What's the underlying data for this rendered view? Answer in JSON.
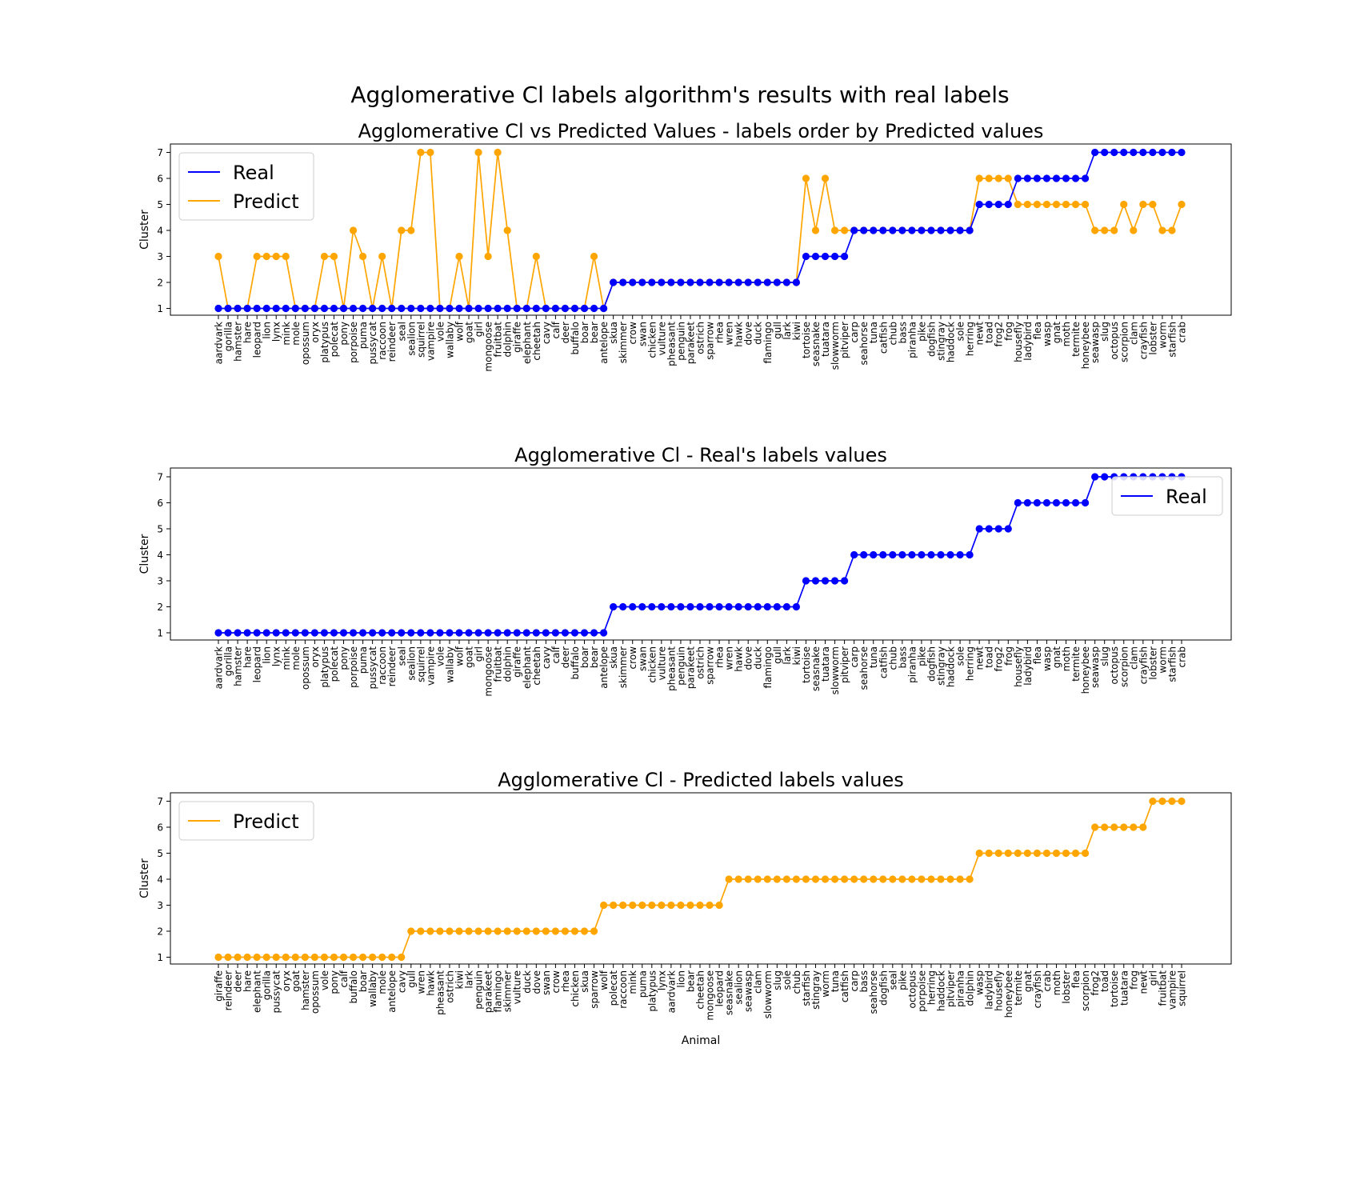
{
  "suptitle": "Agglomerative Cl labels algorithm's results with real labels",
  "colors": {
    "real": "#0000ff",
    "predict": "#ffa500"
  },
  "chart_data": [
    {
      "type": "line",
      "title": "Agglomerative Cl vs Predicted Values - labels order by Predicted values",
      "xlabel": "",
      "ylabel": "Cluster",
      "ylim": [
        1,
        7
      ],
      "legend": "upper-left",
      "categories": [
        "aardvark",
        "gorilla",
        "hamster",
        "hare",
        "leopard",
        "lion",
        "lynx",
        "mink",
        "mole",
        "opossum",
        "oryx",
        "platypus",
        "polecat",
        "pony",
        "porpoise",
        "puma",
        "pussycat",
        "raccoon",
        "reindeer",
        "seal",
        "sealion",
        "squirrel",
        "vampire",
        "vole",
        "wallaby",
        "wolf",
        "goat",
        "girl",
        "mongoose",
        "fruitbat",
        "dolphin",
        "giraffe",
        "elephant",
        "cheetah",
        "cavy",
        "calf",
        "deer",
        "buffalo",
        "boar",
        "bear",
        "antelope",
        "skua",
        "skimmer",
        "crow",
        "swan",
        "chicken",
        "vulture",
        "pheasant",
        "penguin",
        "parakeet",
        "ostrich",
        "sparrow",
        "rhea",
        "wren",
        "hawk",
        "dove",
        "duck",
        "flamingo",
        "gull",
        "lark",
        "kiwi",
        "tortoise",
        "seasnake",
        "tuatara",
        "slowworm",
        "pitviper",
        "carp",
        "seahorse",
        "tuna",
        "catfish",
        "chub",
        "bass",
        "piranha",
        "pike",
        "dogfish",
        "stingray",
        "haddock",
        "sole",
        "herring",
        "newt",
        "toad",
        "frog2",
        "frog",
        "housefly",
        "ladybird",
        "flea",
        "wasp",
        "gnat",
        "moth",
        "termite",
        "honeybee",
        "seawasp",
        "slug",
        "octopus",
        "scorpion",
        "clam",
        "crayfish",
        "lobster",
        "worm",
        "starfish",
        "crab"
      ],
      "series": [
        {
          "name": "Real",
          "color": "#0000ff",
          "values": [
            1,
            1,
            1,
            1,
            1,
            1,
            1,
            1,
            1,
            1,
            1,
            1,
            1,
            1,
            1,
            1,
            1,
            1,
            1,
            1,
            1,
            1,
            1,
            1,
            1,
            1,
            1,
            1,
            1,
            1,
            1,
            1,
            1,
            1,
            1,
            1,
            1,
            1,
            1,
            1,
            1,
            2,
            2,
            2,
            2,
            2,
            2,
            2,
            2,
            2,
            2,
            2,
            2,
            2,
            2,
            2,
            2,
            2,
            2,
            2,
            2,
            3,
            3,
            3,
            3,
            3,
            4,
            4,
            4,
            4,
            4,
            4,
            4,
            4,
            4,
            4,
            4,
            4,
            4,
            5,
            5,
            5,
            5,
            6,
            6,
            6,
            6,
            6,
            6,
            6,
            6,
            7,
            7,
            7,
            7,
            7,
            7,
            7,
            7,
            7,
            7
          ]
        },
        {
          "name": "Predict",
          "color": "#ffa500",
          "values": [
            3,
            1,
            1,
            1,
            3,
            3,
            3,
            3,
            1,
            1,
            1,
            3,
            3,
            1,
            4,
            3,
            1,
            3,
            1,
            4,
            4,
            7,
            7,
            1,
            1,
            3,
            1,
            7,
            3,
            7,
            4,
            1,
            1,
            3,
            1,
            1,
            1,
            1,
            1,
            3,
            1,
            2,
            2,
            2,
            2,
            2,
            2,
            2,
            2,
            2,
            2,
            2,
            2,
            2,
            2,
            2,
            2,
            2,
            2,
            2,
            2,
            6,
            4,
            6,
            4,
            4,
            4,
            4,
            4,
            4,
            4,
            4,
            4,
            4,
            4,
            4,
            4,
            4,
            4,
            6,
            6,
            6,
            6,
            5,
            5,
            5,
            5,
            5,
            5,
            5,
            5,
            4,
            4,
            4,
            5,
            4,
            5,
            5,
            4,
            4,
            5
          ]
        }
      ]
    },
    {
      "type": "line",
      "title": "Agglomerative Cl - Real's labels values",
      "xlabel": "",
      "ylabel": "Cluster",
      "ylim": [
        1,
        7
      ],
      "legend": "upper-right",
      "categories": [
        "aardvark",
        "gorilla",
        "hamster",
        "hare",
        "leopard",
        "lion",
        "lynx",
        "mink",
        "mole",
        "opossum",
        "oryx",
        "platypus",
        "polecat",
        "pony",
        "porpoise",
        "puma",
        "pussycat",
        "raccoon",
        "reindeer",
        "seal",
        "sealion",
        "squirrel",
        "vampire",
        "vole",
        "wallaby",
        "wolf",
        "goat",
        "girl",
        "mongoose",
        "fruitbat",
        "dolphin",
        "giraffe",
        "elephant",
        "cheetah",
        "cavy",
        "calf",
        "deer",
        "buffalo",
        "boar",
        "bear",
        "antelope",
        "skua",
        "skimmer",
        "crow",
        "swan",
        "chicken",
        "vulture",
        "pheasant",
        "penguin",
        "parakeet",
        "ostrich",
        "sparrow",
        "rhea",
        "wren",
        "hawk",
        "dove",
        "duck",
        "flamingo",
        "gull",
        "lark",
        "kiwi",
        "tortoise",
        "seasnake",
        "tuatara",
        "slowworm",
        "pitviper",
        "carp",
        "seahorse",
        "tuna",
        "catfish",
        "chub",
        "bass",
        "piranha",
        "pike",
        "dogfish",
        "stingray",
        "haddock",
        "sole",
        "herring",
        "newt",
        "toad",
        "frog2",
        "frog",
        "housefly",
        "ladybird",
        "flea",
        "wasp",
        "gnat",
        "moth",
        "termite",
        "honeybee",
        "seawasp",
        "slug",
        "octopus",
        "scorpion",
        "clam",
        "crayfish",
        "lobster",
        "worm",
        "starfish",
        "crab"
      ],
      "series": [
        {
          "name": "Real",
          "color": "#0000ff",
          "values": [
            1,
            1,
            1,
            1,
            1,
            1,
            1,
            1,
            1,
            1,
            1,
            1,
            1,
            1,
            1,
            1,
            1,
            1,
            1,
            1,
            1,
            1,
            1,
            1,
            1,
            1,
            1,
            1,
            1,
            1,
            1,
            1,
            1,
            1,
            1,
            1,
            1,
            1,
            1,
            1,
            1,
            2,
            2,
            2,
            2,
            2,
            2,
            2,
            2,
            2,
            2,
            2,
            2,
            2,
            2,
            2,
            2,
            2,
            2,
            2,
            2,
            3,
            3,
            3,
            3,
            3,
            4,
            4,
            4,
            4,
            4,
            4,
            4,
            4,
            4,
            4,
            4,
            4,
            4,
            5,
            5,
            5,
            5,
            6,
            6,
            6,
            6,
            6,
            6,
            6,
            6,
            7,
            7,
            7,
            7,
            7,
            7,
            7,
            7,
            7,
            7
          ]
        }
      ]
    },
    {
      "type": "line",
      "title": "Agglomerative Cl - Predicted labels values",
      "xlabel": "Animal",
      "ylabel": "Cluster",
      "ylim": [
        1,
        7
      ],
      "legend": "upper-left",
      "categories": [
        "giraffe",
        "reindeer",
        "deer",
        "hare",
        "elephant",
        "gorilla",
        "pussycat",
        "oryx",
        "goat",
        "hamster",
        "opossum",
        "vole",
        "pony",
        "calf",
        "buffalo",
        "boar",
        "wallaby",
        "mole",
        "antelope",
        "cavy",
        "gull",
        "wren",
        "hawk",
        "pheasant",
        "ostrich",
        "kiwi",
        "lark",
        "penguin",
        "parakeet",
        "flamingo",
        "skimmer",
        "vulture",
        "duck",
        "dove",
        "swan",
        "crow",
        "rhea",
        "chicken",
        "skua",
        "sparrow",
        "wolf",
        "polecat",
        "raccoon",
        "mink",
        "puma",
        "platypus",
        "lynx",
        "aardvark",
        "lion",
        "bear",
        "cheetah",
        "mongoose",
        "leopard",
        "seasnake",
        "sealion",
        "seawasp",
        "clam",
        "slowworm",
        "slug",
        "sole",
        "chub",
        "starfish",
        "stingray",
        "worm",
        "tuna",
        "catfish",
        "carp",
        "bass",
        "seahorse",
        "dogfish",
        "seal",
        "pike",
        "octopus",
        "porpoise",
        "herring",
        "haddock",
        "pitviper",
        "piranha",
        "dolphin",
        "wasp",
        "ladybird",
        "housefly",
        "honeybee",
        "termite",
        "gnat",
        "crayfish",
        "crab",
        "moth",
        "lobster",
        "flea",
        "scorpion",
        "frog2",
        "toad",
        "tortoise",
        "tuatara",
        "frog",
        "newt",
        "girl",
        "fruitbat",
        "vampire",
        "squirrel"
      ],
      "series": [
        {
          "name": "Predict",
          "color": "#ffa500",
          "values": [
            1,
            1,
            1,
            1,
            1,
            1,
            1,
            1,
            1,
            1,
            1,
            1,
            1,
            1,
            1,
            1,
            1,
            1,
            1,
            1,
            2,
            2,
            2,
            2,
            2,
            2,
            2,
            2,
            2,
            2,
            2,
            2,
            2,
            2,
            2,
            2,
            2,
            2,
            2,
            2,
            3,
            3,
            3,
            3,
            3,
            3,
            3,
            3,
            3,
            3,
            3,
            3,
            3,
            4,
            4,
            4,
            4,
            4,
            4,
            4,
            4,
            4,
            4,
            4,
            4,
            4,
            4,
            4,
            4,
            4,
            4,
            4,
            4,
            4,
            4,
            4,
            4,
            4,
            4,
            5,
            5,
            5,
            5,
            5,
            5,
            5,
            5,
            5,
            5,
            5,
            5,
            6,
            6,
            6,
            6,
            6,
            6,
            7,
            7,
            7,
            7
          ]
        }
      ]
    }
  ]
}
